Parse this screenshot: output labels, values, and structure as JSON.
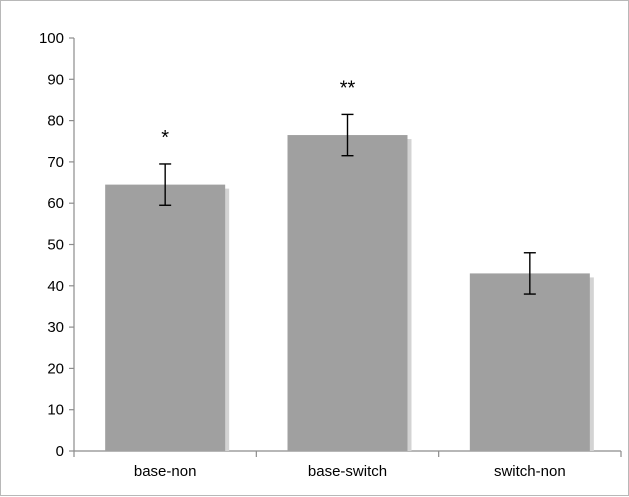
{
  "chart_data": {
    "type": "bar",
    "title": "",
    "xlabel": "",
    "ylabel": "",
    "categories": [
      "base-non",
      "base-switch",
      "switch-non"
    ],
    "values": [
      64.5,
      76.5,
      43
    ],
    "error": [
      5,
      5,
      5
    ],
    "significance": [
      "*",
      "**",
      ""
    ],
    "ylim": [
      0,
      100
    ],
    "yticks": [
      0,
      10,
      20,
      30,
      40,
      50,
      60,
      70,
      80,
      90,
      100
    ],
    "ytick_labels": [
      "0",
      "10",
      "20",
      "30",
      "40",
      "50",
      "60",
      "70",
      "80",
      "90",
      "100"
    ],
    "grid": false,
    "legend": "none",
    "colors": {
      "bar": "#a0a0a0",
      "bar_shadow": "#d3d3d3",
      "axis": "#8c8c8c",
      "error_bar": "#000000",
      "frame": "#b8b8b8"
    }
  }
}
